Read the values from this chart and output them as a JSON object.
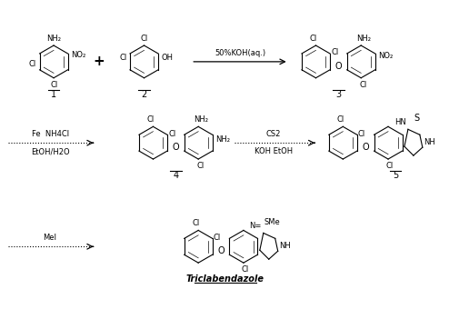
{
  "bg_color": "#ffffff",
  "line_color": "#000000",
  "step1_reagent": "50%KOH(aq.)",
  "step2_reagent1": "Fe  NH4Cl",
  "step2_reagent2": "EtOH/H2O",
  "step3_reagent1": "CS2",
  "step3_reagent2": "KOH EtOH",
  "step4_reagent": "MeI",
  "compound1_label": "1",
  "compound2_label": "2",
  "compound3_label": "3",
  "compound4_label": "4",
  "compound5_label": "5",
  "final_label": "Triclabendazole"
}
